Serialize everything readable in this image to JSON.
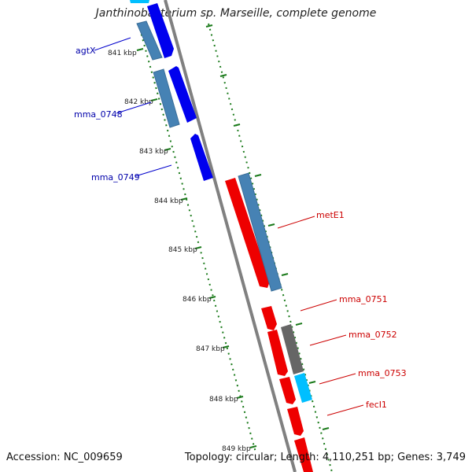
{
  "title": "Janthinobacterium sp. Marseille, complete genome",
  "footer": {
    "accession": "Accession: NC_009659",
    "stats": "Topology: circular; Length: 4,110,251 bp; Genes: 3,749"
  },
  "colors": {
    "forward_gene": "#0000ee",
    "reverse_gene": "#ee0000",
    "cds_blue": "#4682b4",
    "cds_grey": "#666666",
    "cds_cyan": "#00bfff",
    "tick": "#1a7a1a",
    "backbone": "#808080"
  },
  "ticks": [
    {
      "label": "841 kbp"
    },
    {
      "label": "842 kbp"
    },
    {
      "label": "843 kbp"
    },
    {
      "label": "844 kbp"
    },
    {
      "label": "845 kbp"
    },
    {
      "label": "846 kbp"
    },
    {
      "label": "847 kbp"
    },
    {
      "label": "848 kbp"
    },
    {
      "label": "849 kbp"
    }
  ],
  "left_labels": [
    {
      "text": "agtX"
    },
    {
      "text": "mma_0748"
    },
    {
      "text": "mma_0749"
    }
  ],
  "right_labels": [
    {
      "text": "metE1"
    },
    {
      "text": "mma_0751"
    },
    {
      "text": "mma_0752"
    },
    {
      "text": "mma_0753"
    },
    {
      "text": "fecI1"
    }
  ]
}
